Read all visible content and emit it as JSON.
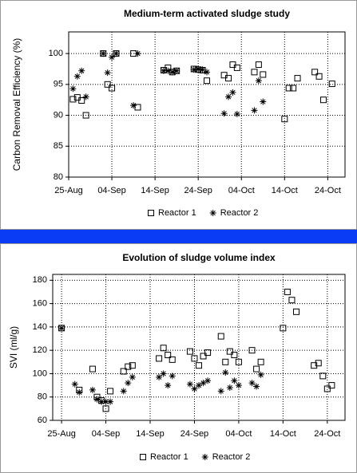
{
  "chart_data": [
    {
      "type": "scatter",
      "title": "Medium-term activated sludge study",
      "y_label": "Carbon Removal Efficiency (%)",
      "x": [
        "26-Aug",
        "27-Aug",
        "28-Aug",
        "29-Aug",
        "02-Sep",
        "03-Sep",
        "04-Sep",
        "05-Sep",
        "09-Sep",
        "10-Sep",
        "16-Sep",
        "17-Sep",
        "18-Sep",
        "19-Sep",
        "23-Sep",
        "24-Sep",
        "25-Sep",
        "26-Sep",
        "30-Sep",
        "01-Oct",
        "02-Oct",
        "03-Oct",
        "07-Oct",
        "08-Oct",
        "09-Oct",
        "14-Oct",
        "15-Oct",
        "16-Oct",
        "17-Oct",
        "21-Oct",
        "22-Oct",
        "23-Oct",
        "25-Oct"
      ],
      "series": [
        {
          "name": "Reactor 1",
          "color": "#000000",
          "marker": "square",
          "values": [
            92.6,
            92.9,
            92.4,
            90.0,
            100,
            95.0,
            94.4,
            100,
            100,
            91.3,
            97.3,
            97.7,
            97.0,
            97.2,
            97.5,
            97.4,
            97.3,
            95.6,
            96.5,
            96.0,
            98.2,
            97.7,
            97.0,
            98.2,
            96.6,
            89.4,
            94.4,
            94.4,
            96.0,
            97.0,
            96.3,
            92.5,
            95.1
          ]
        },
        {
          "name": "Reactor 2",
          "color": "#000000",
          "marker": "asterisk",
          "values": [
            94.3,
            96.3,
            97.2,
            93.0,
            100,
            96.9,
            99.4,
            100,
            91.6,
            100,
            97.2,
            97.2,
            97.0,
            97.2,
            97.4,
            97.5,
            97.4,
            97.0,
            90.3,
            93.0,
            93.7,
            90.2,
            90.8,
            95.6,
            92.2,
            null,
            null,
            null,
            null,
            null,
            null,
            null,
            null
          ]
        }
      ],
      "xlim": [
        "25-Aug",
        "28-Oct"
      ],
      "xticks": [
        "25-Aug",
        "04-Sep",
        "14-Sep",
        "24-Sep",
        "04-Oct",
        "14-Oct",
        "24-Oct"
      ],
      "ylim": [
        80,
        103.5
      ],
      "yticks": [
        80,
        85,
        90,
        95,
        100
      ],
      "grid": true,
      "legend": "bottom"
    },
    {
      "type": "scatter",
      "title": "Evolution of sludge volume index",
      "y_label": "SVI (ml/g)",
      "x": [
        "25-Aug",
        "28-Aug",
        "29-Aug",
        "01-Sep",
        "02-Sep",
        "03-Sep",
        "04-Sep",
        "05-Sep",
        "08-Sep",
        "09-Sep",
        "10-Sep",
        "16-Sep",
        "17-Sep",
        "18-Sep",
        "19-Sep",
        "23-Sep",
        "24-Sep",
        "25-Sep",
        "26-Sep",
        "27-Sep",
        "30-Sep",
        "01-Oct",
        "02-Oct",
        "03-Oct",
        "04-Oct",
        "07-Oct",
        "08-Oct",
        "09-Oct",
        "14-Oct",
        "15-Oct",
        "16-Oct",
        "17-Oct",
        "21-Oct",
        "22-Oct",
        "23-Oct",
        "24-Oct",
        "25-Oct"
      ],
      "series": [
        {
          "name": "Reactor 1",
          "color": "#000000",
          "marker": "square",
          "values": [
            139,
            null,
            86,
            104,
            80,
            77,
            70,
            85,
            102,
            106,
            107,
            113,
            122,
            116,
            112,
            119,
            113,
            107,
            115,
            118,
            132,
            110,
            119,
            116,
            110,
            120,
            104,
            110,
            139,
            170,
            163,
            153,
            107,
            109,
            98,
            87,
            90
          ]
        },
        {
          "name": "Reactor 2",
          "color": "#000000",
          "marker": "asterisk",
          "values": [
            139,
            91,
            84,
            86,
            78,
            76,
            76,
            76,
            85,
            92,
            97,
            97,
            100,
            90,
            98,
            91,
            87,
            90,
            92,
            94,
            85,
            101,
            88,
            94,
            90,
            92,
            89,
            99,
            null,
            null,
            null,
            null,
            null,
            null,
            null,
            null,
            null
          ]
        }
      ],
      "xlim": [
        "23-Aug",
        "28-Oct"
      ],
      "xticks": [
        "25-Aug",
        "04-Sep",
        "14-Sep",
        "24-Sep",
        "04-Oct",
        "14-Oct",
        "24-Oct"
      ],
      "ylim": [
        60,
        185
      ],
      "yticks": [
        60,
        80,
        100,
        120,
        140,
        160,
        180
      ],
      "grid": true,
      "legend": "bottom"
    }
  ]
}
